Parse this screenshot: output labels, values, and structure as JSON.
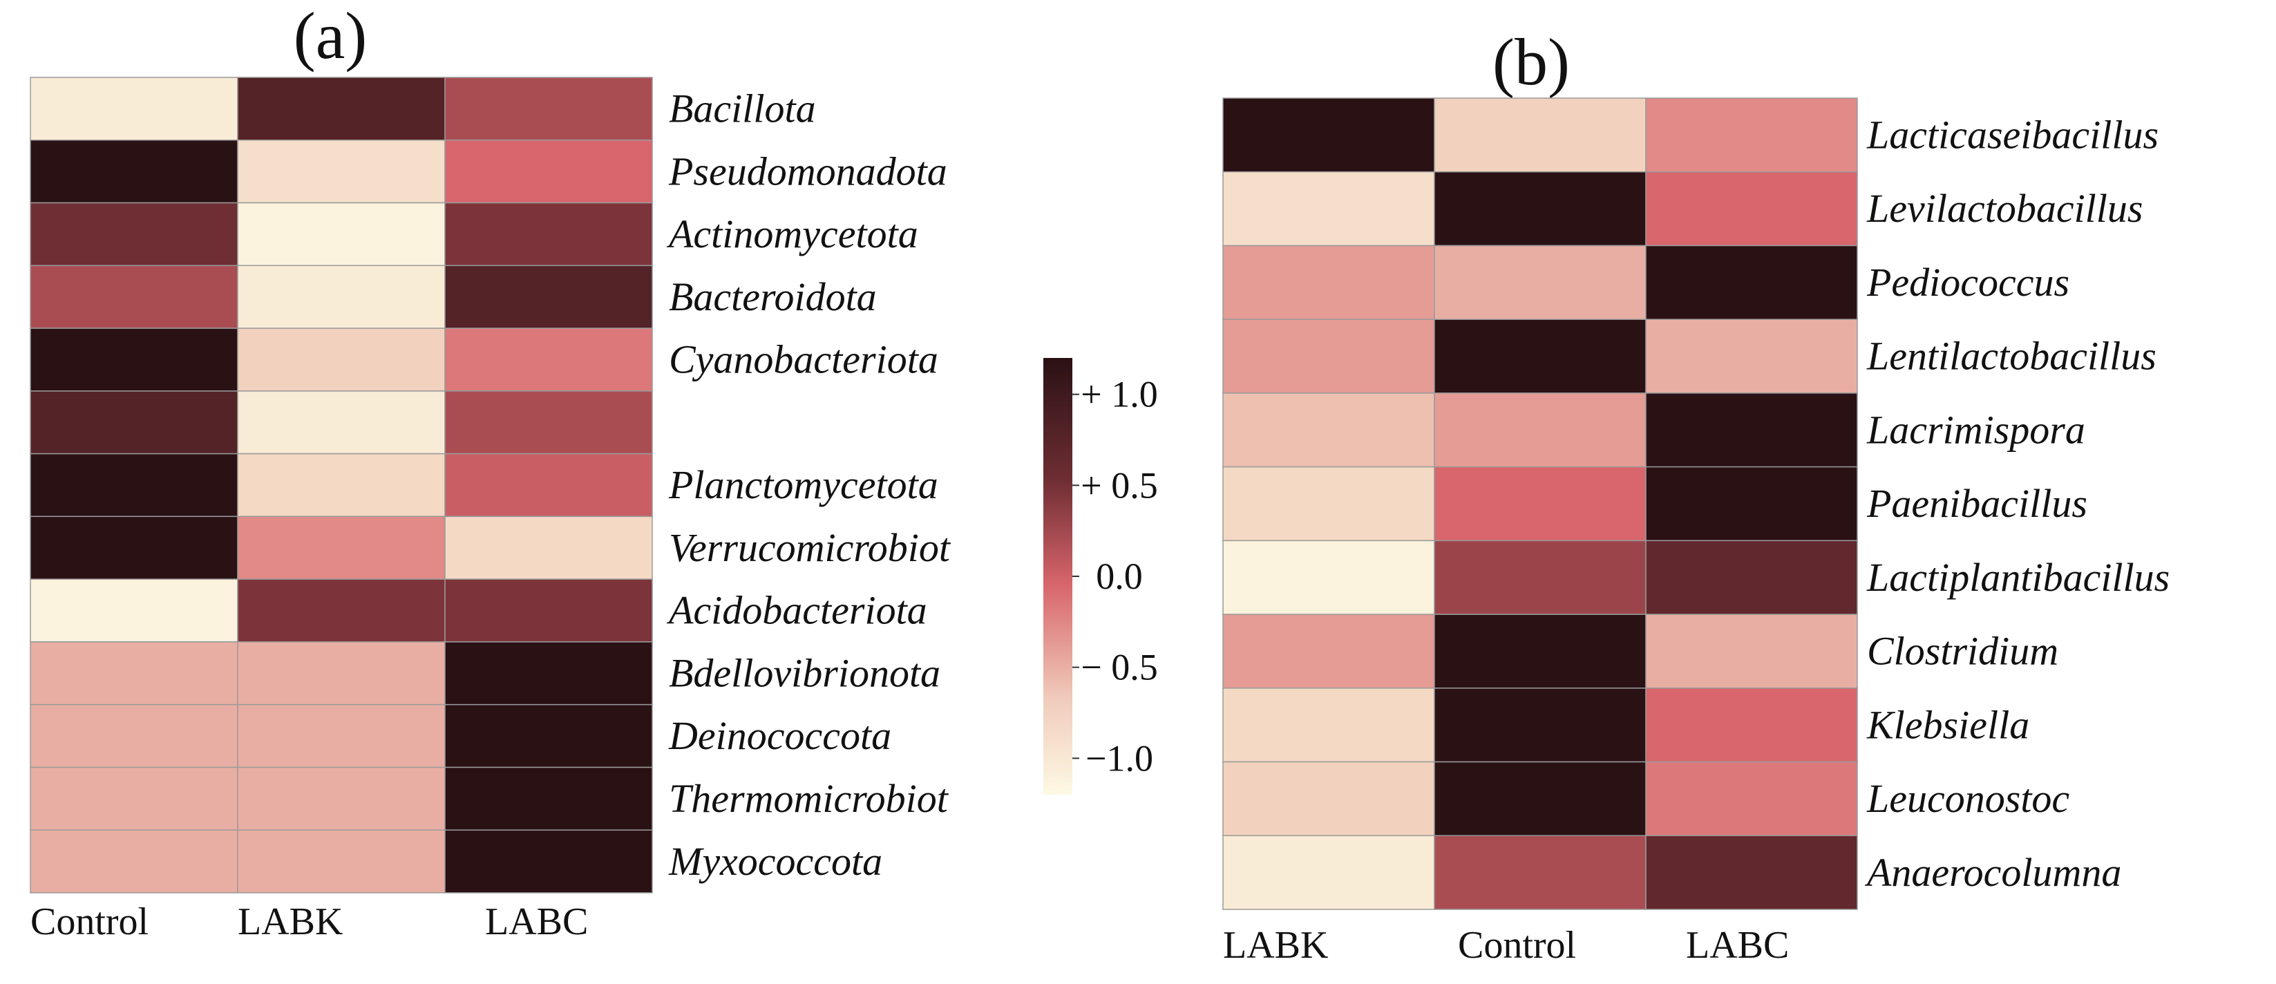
{
  "colors": {
    "scale_low": "#fdf9e3",
    "scale_mid": "#d8666c",
    "scale_high": "#2a1114",
    "cell_border": "#9a9a9a"
  },
  "chart_data": [
    {
      "type": "heatmap",
      "panel_label": "(a)",
      "columns": [
        "Control",
        "LABK",
        "LABC"
      ],
      "rows": [
        "Bacillota",
        "Pseudomonadota",
        "Actinomycetota",
        "Bacteroidota",
        "Cyanobacteriota",
        "",
        "Planctomycetota",
        "Verrucomicrobiot",
        "Acidobacteriota",
        "Bdellovibrionota",
        "Deinococcota",
        "Thermomicrobiot",
        "Myxococcota"
      ],
      "values": [
        [
          -1.0,
          0.9,
          0.3
        ],
        [
          1.2,
          -0.8,
          0.0
        ],
        [
          0.7,
          -1.1,
          0.6
        ],
        [
          0.3,
          -1.0,
          0.9
        ],
        [
          1.2,
          -0.6,
          -0.1
        ],
        [
          0.9,
          -1.0,
          0.3
        ],
        [
          1.2,
          -0.7,
          0.1
        ],
        [
          1.2,
          -0.2,
          -0.7
        ],
        [
          -1.1,
          0.6,
          0.6
        ],
        [
          -0.4,
          -0.4,
          1.2
        ],
        [
          -0.4,
          -0.4,
          1.2
        ],
        [
          -0.4,
          -0.4,
          1.2
        ],
        [
          -0.4,
          -0.4,
          1.2
        ]
      ],
      "colorbar": {
        "ticks": [
          1.0,
          0.5,
          0.0,
          -0.5,
          -1.0
        ],
        "tick_labels": [
          "+ 1.0",
          "+ 0.5",
          "0.0",
          "− 0.5",
          "−1.0"
        ],
        "range": [
          -1.2,
          1.2
        ]
      }
    },
    {
      "type": "heatmap",
      "panel_label": "(b)",
      "columns": [
        "LABK",
        "Control",
        "LABC"
      ],
      "rows": [
        "Lacticaseibacillus",
        "Levilactobacillus",
        "Pediococcus",
        "Lentilactobacillus",
        "Lacrimispora",
        "Paenibacillus",
        "Lactiplantibacillus",
        "Clostridium",
        "Klebsiella",
        "Leuconostoc",
        "Anaerocolumna"
      ],
      "values": [
        [
          1.2,
          -0.6,
          -0.2
        ],
        [
          -0.8,
          1.2,
          0.0
        ],
        [
          -0.3,
          -0.4,
          1.2
        ],
        [
          -0.3,
          1.2,
          -0.4
        ],
        [
          -0.5,
          -0.3,
          1.2
        ],
        [
          -0.7,
          0.0,
          1.2
        ],
        [
          -1.1,
          0.4,
          0.8
        ],
        [
          -0.3,
          1.2,
          -0.4
        ],
        [
          -0.7,
          1.2,
          0.0
        ],
        [
          -0.6,
          1.2,
          -0.1
        ],
        [
          -1.0,
          0.3,
          0.8
        ]
      ]
    }
  ]
}
